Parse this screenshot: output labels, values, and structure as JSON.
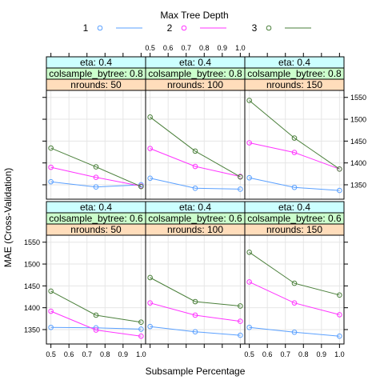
{
  "legend": {
    "title": "Max Tree Depth",
    "entries": [
      {
        "label": "1",
        "color": "#5aa0ff"
      },
      {
        "label": "2",
        "color": "#ff33ff"
      },
      {
        "label": "3",
        "color": "#4a7f3a"
      }
    ]
  },
  "strip_colors": {
    "eta": "#ccffff",
    "colsample": "#ccffcc",
    "nrounds": "#ffddbb"
  },
  "chart_data": {
    "type": "line",
    "title": "",
    "xlabel": "Subsample Percentage",
    "ylabel": "MAE (Cross-Validation)",
    "x_ticks": [
      "0.5",
      "0.6",
      "0.7",
      "0.8",
      "0.9",
      "1.0"
    ],
    "x_tick_values": [
      0.5,
      0.6,
      0.7,
      0.8,
      0.9,
      1.0
    ],
    "y_ticks": [
      "1350",
      "1400",
      "1450",
      "1500",
      "1550"
    ],
    "y_tick_values": [
      1350,
      1400,
      1450,
      1500,
      1550
    ],
    "xlim": [
      0.475,
      1.025
    ],
    "ylim": [
      1317,
      1566
    ],
    "x": [
      0.5,
      0.75,
      1.0
    ],
    "grid": true,
    "legend_position": "top",
    "panels": [
      {
        "strips": [
          "eta: 0.4",
          "colsample_bytree: 0.8",
          "nrounds:  50"
        ],
        "series": [
          {
            "name": "1",
            "values": [
              1357,
              1345,
              1350
            ]
          },
          {
            "name": "2",
            "values": [
              1390,
              1367,
              1347
            ]
          },
          {
            "name": "3",
            "values": [
              1434,
              1391,
              1346
            ]
          }
        ]
      },
      {
        "strips": [
          "eta: 0.4",
          "colsample_bytree: 0.8",
          "nrounds: 100"
        ],
        "series": [
          {
            "name": "1",
            "values": [
              1365,
              1342,
              1340
            ]
          },
          {
            "name": "2",
            "values": [
              1433,
              1392,
              1369
            ]
          },
          {
            "name": "3",
            "values": [
              1505,
              1427,
              1368
            ]
          }
        ]
      },
      {
        "strips": [
          "eta: 0.4",
          "colsample_bytree: 0.8",
          "nrounds: 150"
        ],
        "series": [
          {
            "name": "1",
            "values": [
              1366,
              1344,
              1337
            ]
          },
          {
            "name": "2",
            "values": [
              1446,
              1424,
              1386
            ]
          },
          {
            "name": "3",
            "values": [
              1543,
              1457,
              1386
            ]
          }
        ]
      },
      {
        "strips": [
          "eta: 0.4",
          "colsample_bytree: 0.6",
          "nrounds:  50"
        ],
        "series": [
          {
            "name": "1",
            "values": [
              1355,
              1354,
              1351
            ]
          },
          {
            "name": "2",
            "values": [
              1392,
              1349,
              1335
            ]
          },
          {
            "name": "3",
            "values": [
              1438,
              1383,
              1367
            ]
          }
        ]
      },
      {
        "strips": [
          "eta: 0.4",
          "colsample_bytree: 0.6",
          "nrounds: 100"
        ],
        "series": [
          {
            "name": "1",
            "values": [
              1357,
              1345,
              1337
            ]
          },
          {
            "name": "2",
            "values": [
              1411,
              1383,
              1369
            ]
          },
          {
            "name": "3",
            "values": [
              1469,
              1414,
              1404
            ]
          }
        ]
      },
      {
        "strips": [
          "eta: 0.4",
          "colsample_bytree: 0.6",
          "nrounds: 150"
        ],
        "series": [
          {
            "name": "1",
            "values": [
              1355,
              1344,
              1335
            ]
          },
          {
            "name": "2",
            "values": [
              1459,
              1411,
              1384
            ]
          },
          {
            "name": "3",
            "values": [
              1527,
              1456,
              1429
            ]
          }
        ]
      }
    ]
  }
}
